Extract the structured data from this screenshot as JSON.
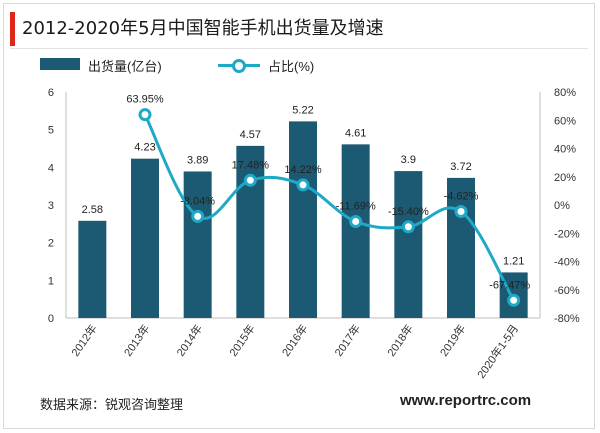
{
  "header": {
    "title": "2012-2020年5月中国智能手机出货量及增速"
  },
  "legend": {
    "bar_label": "出货量(亿台)",
    "line_label": "占比(%)"
  },
  "footer": {
    "source": "数据来源：锐观咨询整理",
    "website": "www.reportrc.com"
  },
  "colors": {
    "bar": "#1c5a73",
    "line": "#1ea9c6",
    "accent": "#e0251b"
  },
  "chart_data": {
    "type": "bar",
    "title": "2012-2020年5月中国智能手机出货量及增速",
    "categories": [
      "2012年",
      "2013年",
      "2014年",
      "2015年",
      "2016年",
      "2017年",
      "2018年",
      "2019年",
      "2020年1-5月"
    ],
    "series": [
      {
        "name": "出货量(亿台)",
        "type": "bar",
        "axis": "left",
        "values": [
          2.58,
          4.23,
          3.89,
          4.57,
          5.22,
          4.61,
          3.9,
          3.72,
          1.21
        ],
        "labels": [
          "2.58",
          "4.23",
          "3.89",
          "4.57",
          "5.22",
          "4.61",
          "3.9",
          "3.72",
          "1.21"
        ]
      },
      {
        "name": "占比(%)",
        "type": "line",
        "axis": "right",
        "values": [
          null,
          63.95,
          -8.04,
          17.48,
          14.22,
          -11.69,
          -15.4,
          -4.62,
          -67.47
        ],
        "labels": [
          "",
          "63.95%",
          "-8.04%",
          "17.48%",
          "14.22%",
          "-11.69%",
          "-15.40%",
          "-4.62%",
          "-67.47%"
        ]
      }
    ],
    "left_axis": {
      "min": 0,
      "max": 6,
      "ticks": [
        "0",
        "1",
        "2",
        "3",
        "4",
        "5",
        "6"
      ]
    },
    "right_axis": {
      "min": -80,
      "max": 80,
      "ticks": [
        "-80%",
        "-60%",
        "-40%",
        "-20%",
        "0%",
        "20%",
        "40%",
        "60%",
        "80%"
      ]
    },
    "grid": false,
    "legend_position": "top-left"
  }
}
